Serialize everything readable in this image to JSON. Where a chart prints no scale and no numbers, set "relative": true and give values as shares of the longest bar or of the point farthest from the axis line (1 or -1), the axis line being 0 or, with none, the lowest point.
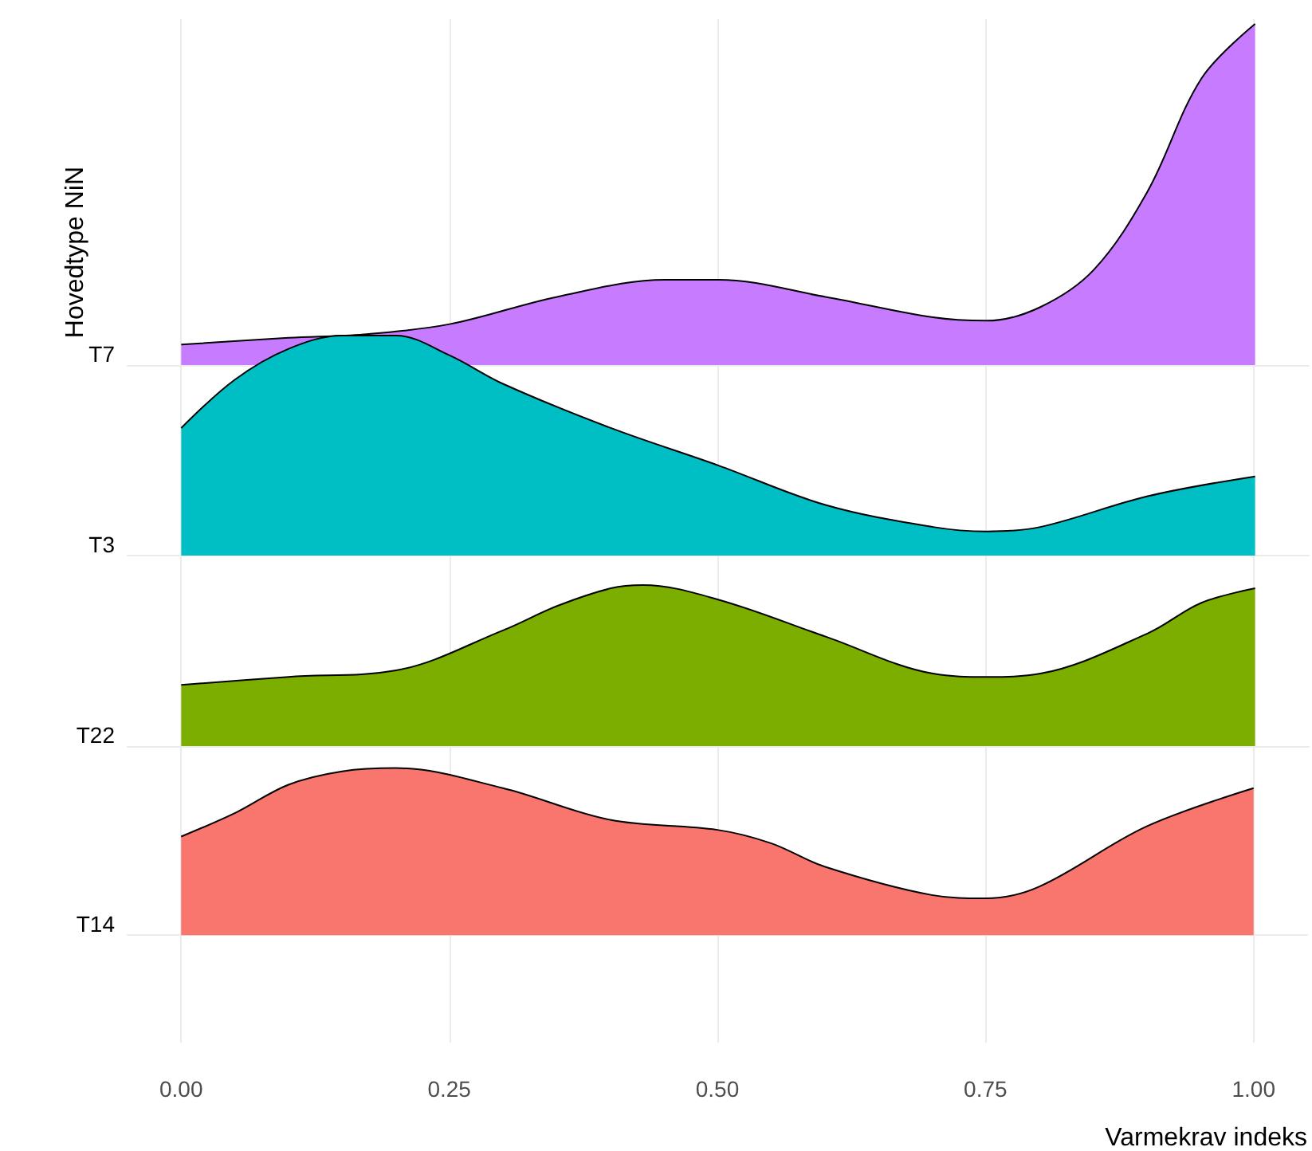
{
  "chart_data": [
    {
      "type": "area",
      "relative": true,
      "ylabel": "Hovedtype NiN",
      "xlim": [
        -0.05,
        1.05
      ],
      "tick_labels": "y",
      "legend": false,
      "series": [
        {
          "name": "T7",
          "color": "#c77cff",
          "x": [
            0,
            0.1,
            0.17,
            0.25,
            0.35,
            0.45,
            0.5,
            0.6,
            0.7,
            0.75,
            0.8,
            0.85,
            0.9,
            0.95,
            1
          ],
          "values": [
            0.06,
            0.08,
            0.09,
            0.12,
            0.2,
            0.25,
            0.25,
            0.2,
            0.14,
            0.13,
            0.17,
            0.28,
            0.51,
            0.84,
            1
          ]
        }
      ]
    },
    {
      "type": "area",
      "relative": true,
      "xlim": [
        -0.05,
        1.05
      ],
      "tick_labels": "y",
      "legend": false,
      "series": [
        {
          "name": "T3",
          "color": "#00bfc4",
          "x": [
            0,
            0.05,
            0.1,
            0.15,
            0.2,
            0.25,
            0.3,
            0.4,
            0.5,
            0.6,
            0.7,
            0.75,
            0.8,
            0.9,
            1
          ],
          "values": [
            0.58,
            0.8,
            0.94,
            1,
            1,
            0.91,
            0.78,
            0.58,
            0.41,
            0.23,
            0.13,
            0.11,
            0.13,
            0.27,
            0.36
          ]
        }
      ]
    },
    {
      "type": "area",
      "relative": true,
      "xlim": [
        -0.05,
        1.05
      ],
      "tick_labels": "y",
      "legend": false,
      "series": [
        {
          "name": "T22",
          "color": "#7cae00",
          "x": [
            0,
            0.1,
            0.2,
            0.3,
            0.35,
            0.4,
            0.43,
            0.5,
            0.6,
            0.7,
            0.75,
            0.8,
            0.9,
            0.95,
            1
          ],
          "values": [
            0.38,
            0.43,
            0.47,
            0.72,
            0.87,
            0.98,
            1,
            0.91,
            0.68,
            0.45,
            0.43,
            0.45,
            0.7,
            0.89,
            0.98
          ]
        }
      ]
    },
    {
      "type": "area",
      "relative": true,
      "xlabel": "Varmekrav indeks",
      "xlim": [
        -0.05,
        1.05
      ],
      "xticks": [
        {
          "value": 0,
          "label": "0.00"
        },
        {
          "value": 0.25,
          "label": "0.25"
        },
        {
          "value": 0.5,
          "label": "0.50"
        },
        {
          "value": 0.75,
          "label": "0.75"
        },
        {
          "value": 1,
          "label": "1.00"
        }
      ],
      "grid": "x",
      "legend": false,
      "series": [
        {
          "name": "T14",
          "color": "#f8766d",
          "x": [
            0,
            0.05,
            0.1,
            0.15,
            0.2,
            0.3,
            0.4,
            0.5,
            0.55,
            0.6,
            0.7,
            0.75,
            0.8,
            0.9,
            1
          ],
          "values": [
            0.59,
            0.73,
            0.9,
            0.98,
            1,
            0.88,
            0.69,
            0.63,
            0.55,
            0.41,
            0.24,
            0.22,
            0.29,
            0.65,
            0.88
          ]
        }
      ]
    }
  ]
}
